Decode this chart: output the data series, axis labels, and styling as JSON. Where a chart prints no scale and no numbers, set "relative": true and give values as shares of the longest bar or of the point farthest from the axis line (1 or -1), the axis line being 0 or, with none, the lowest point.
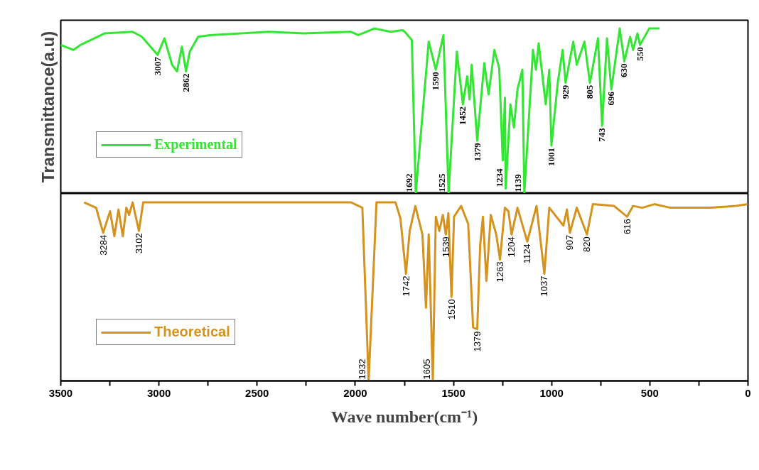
{
  "chart_data": [
    {
      "type": "line",
      "relative": true,
      "ylabel": "Transmittance(a.u)",
      "xlim": [
        3500,
        0
      ],
      "tick_labels": false,
      "legend": "bottom left",
      "series": [
        {
          "name": "Experimental",
          "color": "#33e633",
          "x": [
            3500,
            3435,
            3400,
            3277,
            3134,
            3087,
            3007,
            2972,
            2933,
            2908,
            2883,
            2862,
            2843,
            2800,
            2739,
            2441,
            2262,
            2021,
            1985,
            1903,
            1820,
            1759,
            1748,
            1712,
            1692,
            1626,
            1590,
            1551,
            1525,
            1483,
            1452,
            1430,
            1418,
            1407,
            1379,
            1343,
            1321,
            1292,
            1267,
            1249,
            1238,
            1234,
            1210,
            1192,
            1174,
            1149,
            1139,
            1095,
            1080,
            1066,
            1030,
            1012,
            1001,
            969,
            944,
            929,
            890,
            872,
            833,
            805,
            764,
            743,
            718,
            696,
            653,
            630,
            600,
            585,
            563,
            550,
            503,
            450
          ],
          "values": [
            0.9,
            0.87,
            0.9,
            0.97,
            0.98,
            0.95,
            0.84,
            0.94,
            0.78,
            0.74,
            0.89,
            0.74,
            0.86,
            0.95,
            0.96,
            0.98,
            0.97,
            0.98,
            0.96,
            1.0,
            0.98,
            0.99,
            0.98,
            0.93,
            0.0,
            0.92,
            0.75,
            0.96,
            0.0,
            0.86,
            0.54,
            0.71,
            0.57,
            0.78,
            0.32,
            0.79,
            0.6,
            0.87,
            0.76,
            0.2,
            0.58,
            0.03,
            0.54,
            0.4,
            0.63,
            0.75,
            0.0,
            0.87,
            0.75,
            0.91,
            0.54,
            0.75,
            0.29,
            0.67,
            0.87,
            0.67,
            0.92,
            0.78,
            0.92,
            0.67,
            0.94,
            0.41,
            0.94,
            0.63,
            1.0,
            0.8,
            0.95,
            0.87,
            0.97,
            0.9,
            1.0,
            1.0
          ]
        }
      ],
      "annotations": [
        {
          "text": "3007",
          "x": 3007,
          "y": 0.84
        },
        {
          "text": "2862",
          "x": 2862,
          "y": 0.74
        },
        {
          "text": "1692",
          "x": 1692,
          "y": 0.0
        },
        {
          "text": "1590",
          "x": 1590,
          "y": 0.75
        },
        {
          "text": "1525",
          "x": 1525,
          "y": 0.0
        },
        {
          "text": "1452",
          "x": 1452,
          "y": 0.54
        },
        {
          "text": "1379",
          "x": 1379,
          "y": 0.32
        },
        {
          "text": "1234",
          "x": 1234,
          "y": 0.03
        },
        {
          "text": "1139",
          "x": 1139,
          "y": 0.0
        },
        {
          "text": "1001",
          "x": 1001,
          "y": 0.29
        },
        {
          "text": "929",
          "x": 929,
          "y": 0.67
        },
        {
          "text": "805",
          "x": 805,
          "y": 0.67
        },
        {
          "text": "743",
          "x": 743,
          "y": 0.41
        },
        {
          "text": "696",
          "x": 696,
          "y": 0.63
        },
        {
          "text": "630",
          "x": 630,
          "y": 0.8
        },
        {
          "text": "550",
          "x": 550,
          "y": 0.9
        }
      ]
    },
    {
      "type": "line",
      "relative": true,
      "xlabel": "Wave number(cm⁻¹)",
      "xlim": [
        3500,
        0
      ],
      "tick_labels": "x",
      "legend": "bottom left",
      "xticks": [
        3500,
        {
          "value": 3250,
          "label": null
        },
        3000,
        {
          "value": 2750,
          "label": null
        },
        2500,
        {
          "value": 2250,
          "label": null
        },
        2000,
        {
          "value": 1750,
          "label": null
        },
        1500,
        {
          "value": 1250,
          "label": null
        },
        1000,
        {
          "value": 750,
          "label": null
        },
        500,
        {
          "value": 250,
          "label": null
        },
        0
      ],
      "series": [
        {
          "name": "Theoretical",
          "color": "#d4921f",
          "x": [
            3381,
            3320,
            3284,
            3249,
            3227,
            3206,
            3184,
            3166,
            3152,
            3134,
            3102,
            3080,
            2021,
            1964,
            1932,
            1892,
            1795,
            1770,
            1742,
            1723,
            1694,
            1658,
            1640,
            1626,
            1605,
            1590,
            1572,
            1554,
            1539,
            1526,
            1510,
            1497,
            1461,
            1425,
            1400,
            1379,
            1364,
            1350,
            1332,
            1310,
            1282,
            1263,
            1238,
            1220,
            1204,
            1174,
            1124,
            1077,
            1037,
            1012,
            940,
            922,
            907,
            872,
            820,
            790,
            682,
            616,
            585,
            538,
            477,
            395,
            287,
            190,
            61,
            0
          ],
          "values": [
            1.0,
            0.97,
            0.83,
            0.95,
            0.81,
            0.96,
            0.81,
            0.97,
            0.93,
            1.0,
            0.84,
            1.0,
            1.0,
            0.97,
            0.0,
            1.0,
            1.0,
            0.91,
            0.6,
            0.84,
            0.98,
            0.82,
            0.41,
            0.82,
            0.0,
            0.92,
            0.84,
            0.93,
            0.82,
            0.94,
            0.47,
            0.92,
            0.98,
            0.88,
            0.3,
            0.29,
            0.76,
            0.92,
            0.56,
            0.93,
            0.82,
            0.68,
            0.97,
            0.95,
            0.82,
            0.97,
            0.78,
            0.98,
            0.6,
            0.97,
            0.87,
            0.96,
            0.83,
            0.97,
            0.82,
            0.99,
            0.98,
            0.92,
            0.98,
            0.97,
            0.99,
            0.97,
            0.97,
            0.97,
            0.98,
            0.99
          ]
        }
      ],
      "annotations": [
        {
          "text": "3284",
          "x": 3284,
          "y": 0.83
        },
        {
          "text": "3102",
          "x": 3102,
          "y": 0.84
        },
        {
          "text": "1932",
          "x": 1932,
          "y": 0.0
        },
        {
          "text": "1742",
          "x": 1742,
          "y": 0.6
        },
        {
          "text": "1605",
          "x": 1605,
          "y": 0.0
        },
        {
          "text": "1539",
          "x": 1539,
          "y": 0.82
        },
        {
          "text": "1510",
          "x": 1510,
          "y": 0.47
        },
        {
          "text": "1379",
          "x": 1379,
          "y": 0.29
        },
        {
          "text": "1263",
          "x": 1263,
          "y": 0.68
        },
        {
          "text": "1204",
          "x": 1204,
          "y": 0.82
        },
        {
          "text": "1124",
          "x": 1124,
          "y": 0.78
        },
        {
          "text": "1037",
          "x": 1037,
          "y": 0.6
        },
        {
          "text": "907",
          "x": 907,
          "y": 0.83
        },
        {
          "text": "820",
          "x": 820,
          "y": 0.82
        },
        {
          "text": "616",
          "x": 616,
          "y": 0.92
        }
      ]
    }
  ]
}
